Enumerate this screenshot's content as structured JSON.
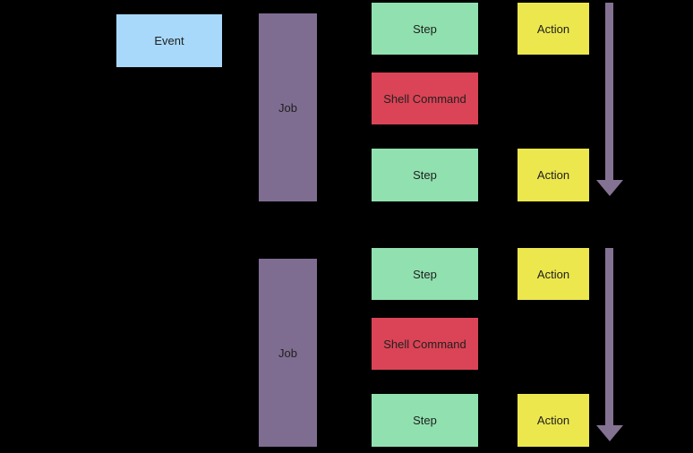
{
  "colors": {
    "background": "#000000",
    "event_fill": "#A8D9FA",
    "job_fill": "#7F6D91",
    "step_fill": "#90E1AF",
    "shell_command_fill": "#DB4456",
    "action_fill": "#ECE74D",
    "arrow": "#847293",
    "label_text": "#202020"
  },
  "workflow": {
    "event": {
      "label": "Event"
    },
    "jobs": [
      {
        "label": "Job",
        "items": [
          {
            "type": "step",
            "label": "Step",
            "action_label": "Action"
          },
          {
            "type": "shell",
            "label": "Shell Command"
          },
          {
            "type": "step",
            "label": "Step",
            "action_label": "Action"
          }
        ]
      },
      {
        "label": "Job",
        "items": [
          {
            "type": "step",
            "label": "Step",
            "action_label": "Action"
          },
          {
            "type": "shell",
            "label": "Shell Command"
          },
          {
            "type": "step",
            "label": "Step",
            "action_label": "Action"
          }
        ]
      }
    ]
  }
}
